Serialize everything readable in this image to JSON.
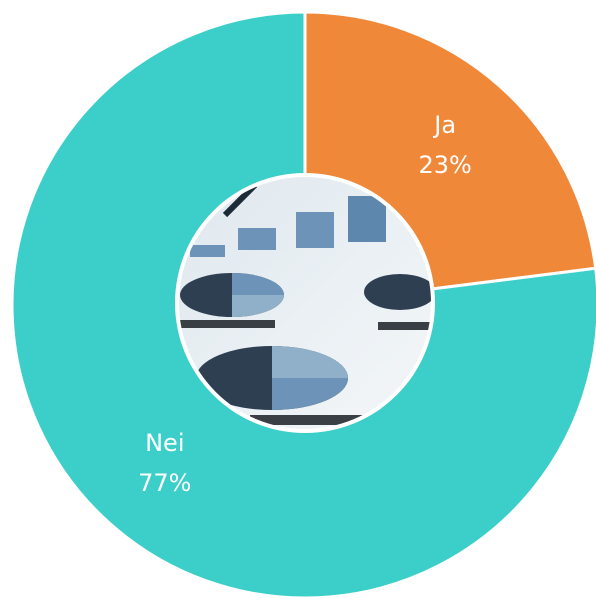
{
  "chart_data": {
    "type": "pie",
    "categories": [
      "Ja",
      "Nei"
    ],
    "values": [
      23,
      77
    ],
    "value_labels": [
      "23%",
      "77%"
    ],
    "colors": [
      "#f0883a",
      "#3ccfca"
    ],
    "donut": true
  }
}
